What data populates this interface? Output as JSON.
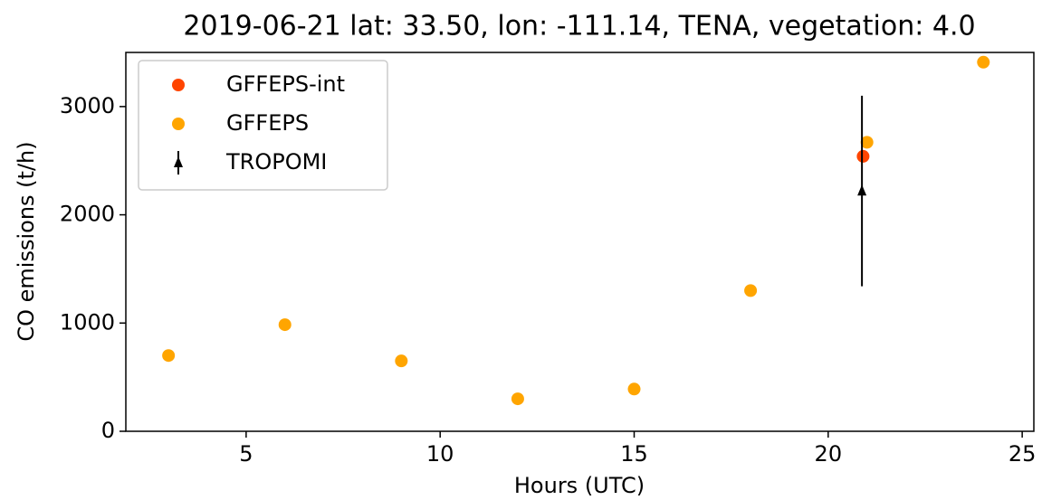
{
  "chart_data": {
    "type": "scatter",
    "title": "2019-06-21 lat: 33.50, lon: -111.14, TENA, vegetation: 4.0",
    "x_label": "Hours (UTC)",
    "y_label": "CO emissions (t/h)",
    "xlim": [
      1.9,
      25.3
    ],
    "ylim": [
      0,
      3500
    ],
    "xticks": [
      5,
      10,
      15,
      20,
      25
    ],
    "yticks": [
      0,
      1000,
      2000,
      3000
    ],
    "grid": false,
    "legend": "upper left",
    "series": [
      {
        "name": "GFFEPS-int",
        "color": "#ff4500",
        "marker": "circle",
        "x": [
          20.9
        ],
        "values": [
          2540
        ]
      },
      {
        "name": "GFFEPS",
        "color": "#ffa500",
        "marker": "circle",
        "x": [
          3,
          6,
          9,
          12,
          15,
          18,
          21,
          24
        ],
        "values": [
          700,
          985,
          650,
          300,
          390,
          1300,
          2670,
          3410
        ]
      },
      {
        "name": "TROPOMI",
        "color": "#000000",
        "marker": "triangle",
        "x": [
          20.87
        ],
        "values": [
          2220
        ],
        "errors": [
          880
        ]
      }
    ]
  }
}
